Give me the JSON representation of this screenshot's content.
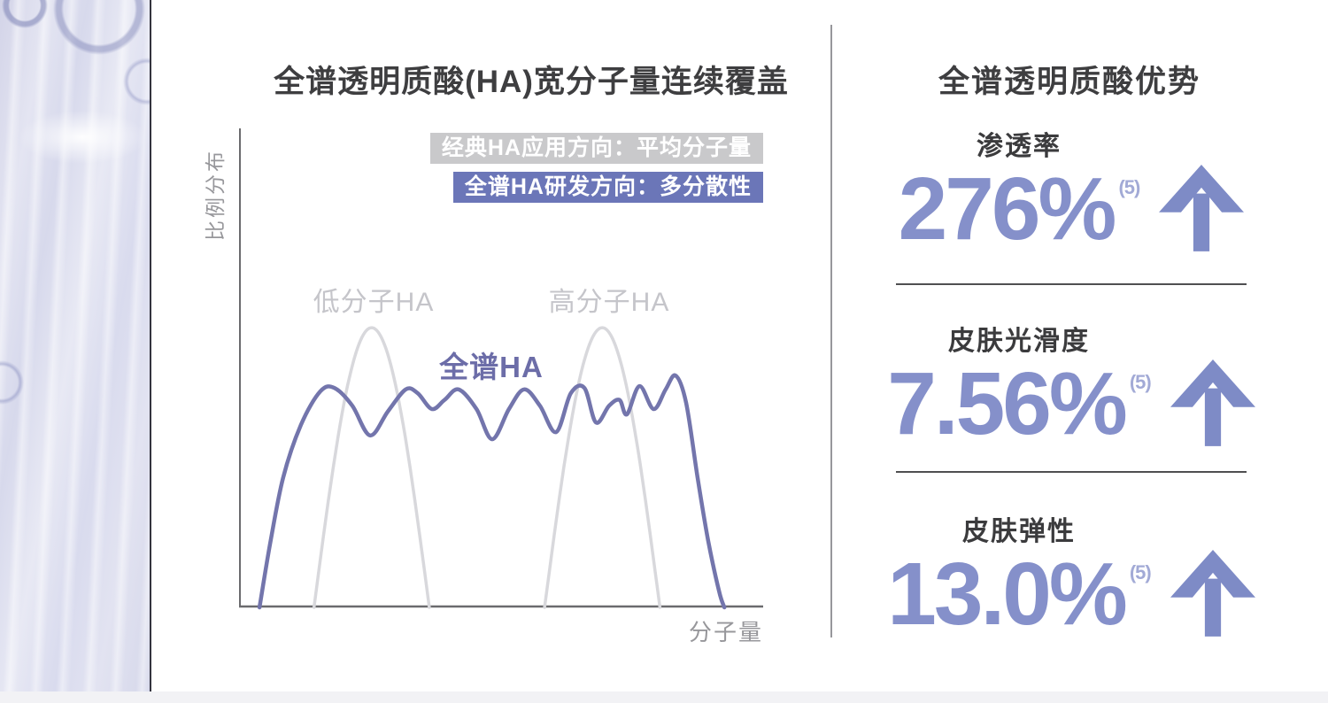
{
  "colors": {
    "accent": "#8590ca",
    "arrow_purple": "#7e8bc6",
    "sup_purple": "#a2aad6",
    "legend_purple": "#6b76b8",
    "legend_gray": "#c9c9cb",
    "curve_purple": "#7375ac",
    "curve_gray": "#d8d8dc",
    "curve_label_gray": "#c5c5ca",
    "dark_text": "#3e3e40",
    "gray_text": "#97979b",
    "axis_gray": "#6b6b6e"
  },
  "chart_panel": {
    "title": "全谱透明质酸(HA)宽分子量连续覆盖",
    "legend": [
      {
        "text": "经典HA应用方向：平均分子量"
      },
      {
        "text": "全谱HA研发方向：多分散性"
      }
    ],
    "y_axis_label": "比例分布",
    "x_axis_label": "分子量",
    "curve_labels": {
      "low": "低分子HA",
      "high": "高分子HA",
      "full": "全谱HA"
    }
  },
  "chart_data": {
    "type": "line",
    "title": "全谱透明质酸(HA)宽分子量连续覆盖",
    "xlabel": "分子量",
    "ylabel": "比例分布",
    "xlim": [
      0,
      100
    ],
    "ylim": [
      0,
      100
    ],
    "grid": false,
    "x_ticks": [],
    "y_ticks": [],
    "legend_position": "top-right",
    "annotations": [
      "经典HA应用方向：平均分子量",
      "全谱HA研发方向：多分散性"
    ],
    "series": [
      {
        "id": "low-ha",
        "name": "低分子HA",
        "kind": "arch",
        "center": 25.3,
        "halfwidth": 11,
        "height": 58.4,
        "color": "#d8d8dc",
        "width": 3.5
      },
      {
        "id": "high-ha",
        "name": "高分子HA",
        "kind": "arch",
        "center": 69.3,
        "halfwidth": 11,
        "height": 58.4,
        "color": "#d8d8dc",
        "width": 3.5
      },
      {
        "id": "full-ha",
        "name": "全谱HA",
        "kind": "points",
        "color": "#7375ac",
        "width": 4.5,
        "points": [
          [
            3.9,
            0
          ],
          [
            5.9,
            13.1
          ],
          [
            8.4,
            27
          ],
          [
            11.8,
            38.1
          ],
          [
            15.5,
            45.1
          ],
          [
            18.2,
            45.8
          ],
          [
            21.6,
            42.1
          ],
          [
            25,
            35.9
          ],
          [
            28.4,
            40.9
          ],
          [
            31.8,
            45.5
          ],
          [
            34.1,
            44.7
          ],
          [
            36.8,
            41.4
          ],
          [
            39.2,
            43.3
          ],
          [
            41.9,
            45.5
          ],
          [
            45.3,
            41.4
          ],
          [
            48.3,
            35.1
          ],
          [
            51.5,
            41.4
          ],
          [
            54.4,
            45.5
          ],
          [
            57.4,
            42.1
          ],
          [
            60.5,
            36.6
          ],
          [
            63.3,
            44.7
          ],
          [
            65.9,
            45.8
          ],
          [
            68.1,
            38.6
          ],
          [
            70.6,
            42.1
          ],
          [
            72.6,
            43.3
          ],
          [
            74,
            40.3
          ],
          [
            76.4,
            46.2
          ],
          [
            79.1,
            41.4
          ],
          [
            81.4,
            45.5
          ],
          [
            83.3,
            48.4
          ],
          [
            85.3,
            42.7
          ],
          [
            87.5,
            27
          ],
          [
            89.5,
            14
          ],
          [
            91.6,
            3.3
          ],
          [
            92.6,
            0
          ]
        ]
      }
    ]
  },
  "advantage_panel": {
    "title": "全谱透明质酸优势",
    "stats": [
      {
        "label": "渗透率",
        "value": "276%",
        "superscript": "(5)",
        "direction": "up"
      },
      {
        "label": "皮肤光滑度",
        "value": "7.56%",
        "superscript": "(5)",
        "direction": "up"
      },
      {
        "label": "皮肤弹性",
        "value": "13.0%",
        "superscript": "(5)",
        "direction": "up"
      }
    ]
  }
}
